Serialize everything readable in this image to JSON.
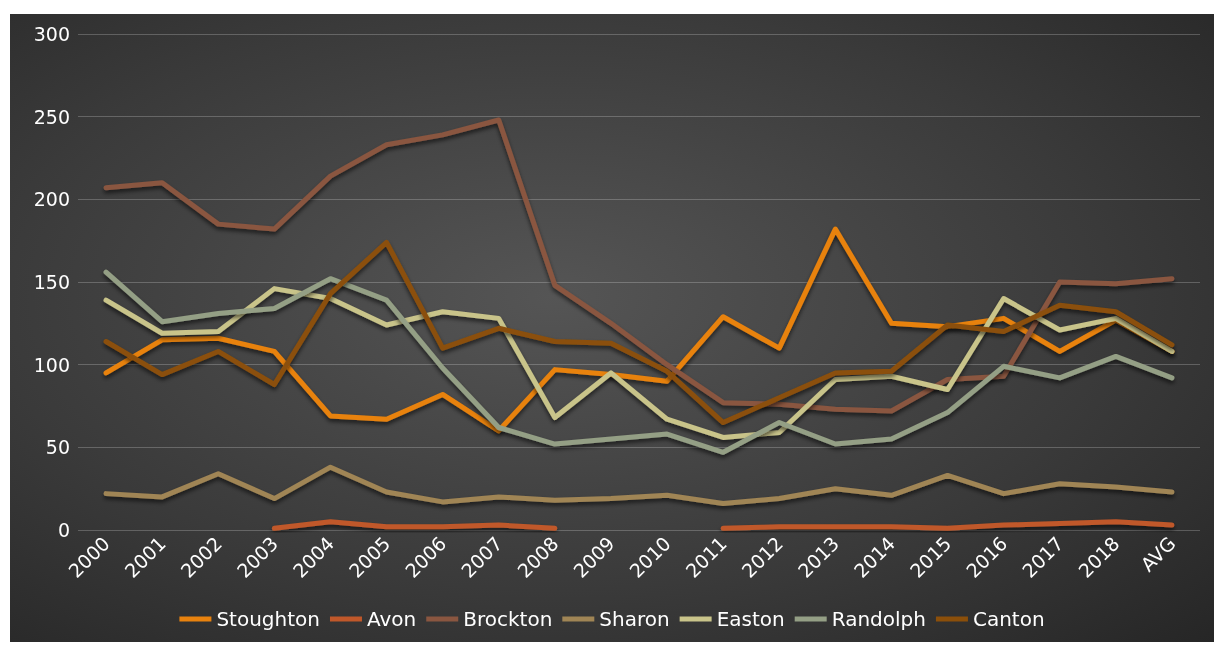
{
  "chart_data": {
    "type": "line",
    "categories": [
      "2000",
      "2001",
      "2002",
      "2003",
      "2004",
      "2005",
      "2006",
      "2007",
      "2008",
      "2009",
      "2010",
      "2011",
      "2012",
      "2013",
      "2014",
      "2015",
      "2016",
      "2017",
      "2018",
      "AVG"
    ],
    "series": [
      {
        "name": "Stoughton",
        "color": "#e8820e",
        "values": [
          95,
          115,
          116,
          108,
          69,
          67,
          82,
          60,
          97,
          94,
          90,
          129,
          110,
          182,
          125,
          123,
          128,
          108,
          127,
          108
        ]
      },
      {
        "name": "Avon",
        "color": "#c0582a",
        "values": [
          null,
          null,
          null,
          1,
          5,
          2,
          2,
          3,
          1,
          null,
          null,
          1,
          2,
          2,
          2,
          1,
          3,
          4,
          5,
          3
        ]
      },
      {
        "name": "Brockton",
        "color": "#8a5640",
        "values": [
          207,
          210,
          185,
          182,
          214,
          233,
          239,
          248,
          148,
          125,
          100,
          77,
          76,
          73,
          72,
          91,
          93,
          150,
          149,
          152
        ]
      },
      {
        "name": "Sharon",
        "color": "#a08555",
        "values": [
          22,
          20,
          34,
          19,
          38,
          23,
          17,
          20,
          18,
          19,
          21,
          16,
          19,
          25,
          21,
          33,
          22,
          28,
          26,
          23
        ]
      },
      {
        "name": "Easton",
        "color": "#c9c48a",
        "values": [
          139,
          119,
          120,
          146,
          140,
          124,
          132,
          128,
          68,
          95,
          67,
          56,
          59,
          91,
          93,
          85,
          140,
          121,
          128,
          108
        ]
      },
      {
        "name": "Randolph",
        "color": "#949f85",
        "values": [
          156,
          126,
          131,
          134,
          152,
          139,
          98,
          62,
          52,
          55,
          58,
          47,
          65,
          52,
          55,
          71,
          99,
          92,
          105,
          92
        ]
      },
      {
        "name": "Canton",
        "color": "#8b4f0a",
        "values": [
          114,
          94,
          108,
          88,
          143,
          174,
          110,
          122,
          114,
          113,
          96,
          65,
          80,
          95,
          96,
          124,
          120,
          136,
          132,
          112
        ]
      }
    ],
    "ylim": [
      0,
      300
    ],
    "yticks": [
      0,
      50,
      100,
      150,
      200,
      250,
      300
    ],
    "grid": "y",
    "legend": "bottom",
    "marker": "none",
    "line_style": "solid"
  }
}
